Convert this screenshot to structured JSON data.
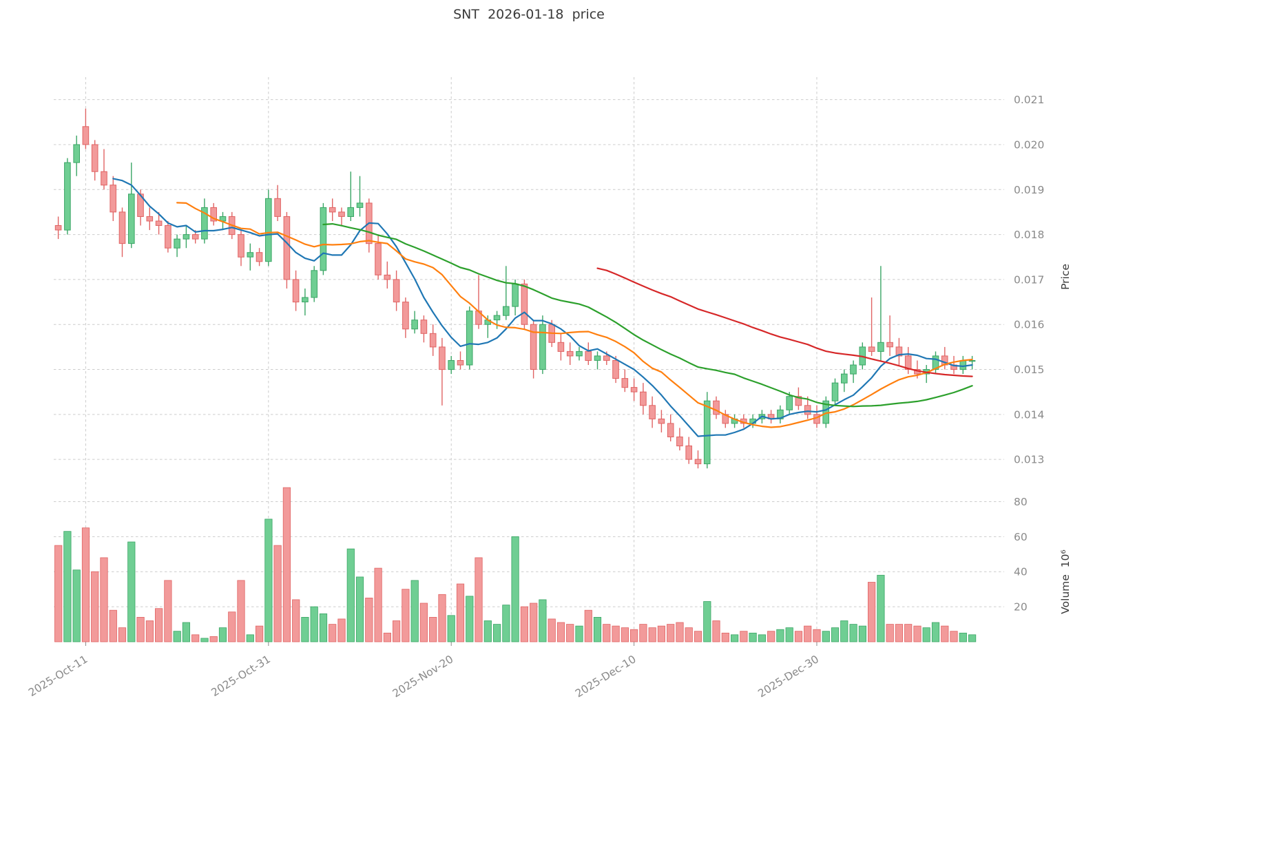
{
  "title": "SNT  2026-01-18  price",
  "axes": {
    "price_label": "Price",
    "volume_label": "Volume  10⁶"
  },
  "chart_data": {
    "type": "candlestick",
    "title": "SNT  2026-01-18  price",
    "ylabel": "Price",
    "ylabel_volume": "Volume  10⁶",
    "grid": true,
    "ylim": [
      0.01265,
      0.0215
    ],
    "volume_ylim": [
      0,
      90
    ],
    "price_ticks": [
      "0.013",
      "0.014",
      "0.015",
      "0.016",
      "0.017",
      "0.018",
      "0.019",
      "0.020",
      "0.021"
    ],
    "volume_ticks": [
      "20",
      "40",
      "60",
      "80"
    ],
    "x_ticks": [
      {
        "index": 3,
        "label": "2025-Oct-11"
      },
      {
        "index": 23,
        "label": "2025-Oct-31"
      },
      {
        "index": 43,
        "label": "2025-Nov-20"
      },
      {
        "index": 63,
        "label": "2025-Dec-10"
      },
      {
        "index": 83,
        "label": "2025-Dec-30"
      }
    ],
    "colors": {
      "up_fill": "#6fce93",
      "up_edge": "#3aa565",
      "down_fill": "#f29a9a",
      "down_edge": "#e06363",
      "grid": "#cccccc",
      "tick_text": "#8a8a8a",
      "ma_colors": [
        "#1f77b4",
        "#ff7f0e",
        "#2ca02c",
        "#d62728"
      ]
    },
    "mavs": [
      {
        "window": 7,
        "color": "#1f77b4"
      },
      {
        "window": 14,
        "color": "#ff7f0e"
      },
      {
        "window": 30,
        "color": "#2ca02c"
      },
      {
        "window": 60,
        "color": "#d62728"
      }
    ],
    "dates": [
      "2025-10-08",
      "2025-10-09",
      "2025-10-10",
      "2025-10-11",
      "2025-10-12",
      "2025-10-13",
      "2025-10-14",
      "2025-10-15",
      "2025-10-16",
      "2025-10-17",
      "2025-10-18",
      "2025-10-19",
      "2025-10-20",
      "2025-10-21",
      "2025-10-22",
      "2025-10-23",
      "2025-10-24",
      "2025-10-25",
      "2025-10-26",
      "2025-10-27",
      "2025-10-28",
      "2025-10-29",
      "2025-10-30",
      "2025-10-31",
      "2025-11-01",
      "2025-11-02",
      "2025-11-03",
      "2025-11-04",
      "2025-11-05",
      "2025-11-06",
      "2025-11-07",
      "2025-11-08",
      "2025-11-09",
      "2025-11-10",
      "2025-11-11",
      "2025-11-12",
      "2025-11-13",
      "2025-11-14",
      "2025-11-15",
      "2025-11-16",
      "2025-11-17",
      "2025-11-18",
      "2025-11-19",
      "2025-11-20",
      "2025-11-21",
      "2025-11-22",
      "2025-11-23",
      "2025-11-24",
      "2025-11-25",
      "2025-11-26",
      "2025-11-27",
      "2025-11-28",
      "2025-11-29",
      "2025-11-30",
      "2025-12-01",
      "2025-12-02",
      "2025-12-03",
      "2025-12-04",
      "2025-12-05",
      "2025-12-06",
      "2025-12-07",
      "2025-12-08",
      "2025-12-09",
      "2025-12-10",
      "2025-12-11",
      "2025-12-12",
      "2025-12-13",
      "2025-12-14",
      "2025-12-15",
      "2025-12-16",
      "2025-12-17",
      "2025-12-18",
      "2025-12-19",
      "2025-12-20",
      "2025-12-21",
      "2025-12-22",
      "2025-12-23",
      "2025-12-24",
      "2025-12-25",
      "2025-12-26",
      "2025-12-27",
      "2025-12-28",
      "2025-12-29",
      "2025-12-30",
      "2025-12-31",
      "2026-01-01",
      "2026-01-02",
      "2026-01-03",
      "2026-01-04",
      "2026-01-05",
      "2026-01-06",
      "2026-01-07",
      "2026-01-08",
      "2026-01-09",
      "2026-01-10",
      "2026-01-11",
      "2026-01-12",
      "2026-01-13",
      "2026-01-14",
      "2026-01-15",
      "2026-01-16"
    ],
    "open": [
      0.0182,
      0.0181,
      0.0196,
      0.0204,
      0.02,
      0.0194,
      0.0191,
      0.0185,
      0.0178,
      0.0189,
      0.0184,
      0.0183,
      0.0182,
      0.0177,
      0.0179,
      0.018,
      0.0179,
      0.0186,
      0.0183,
      0.0184,
      0.018,
      0.0175,
      0.0176,
      0.0174,
      0.0188,
      0.0184,
      0.017,
      0.0165,
      0.0166,
      0.0172,
      0.0186,
      0.0185,
      0.0184,
      0.0186,
      0.0187,
      0.0178,
      0.0171,
      0.017,
      0.0165,
      0.0159,
      0.0161,
      0.0158,
      0.0155,
      0.015,
      0.0152,
      0.0151,
      0.0163,
      0.016,
      0.0161,
      0.0162,
      0.0164,
      0.0169,
      0.016,
      0.015,
      0.016,
      0.0156,
      0.0154,
      0.0153,
      0.0154,
      0.0152,
      0.0153,
      0.0152,
      0.0148,
      0.0146,
      0.0145,
      0.0142,
      0.0139,
      0.0138,
      0.0135,
      0.0133,
      0.013,
      0.0129,
      0.0143,
      0.014,
      0.0138,
      0.0139,
      0.0138,
      0.0139,
      0.014,
      0.0139,
      0.0141,
      0.0144,
      0.0142,
      0.014,
      0.0138,
      0.0143,
      0.0147,
      0.0149,
      0.0151,
      0.0155,
      0.0154,
      0.0156,
      0.0155,
      0.0153,
      0.015,
      0.0149,
      0.015,
      0.0153,
      0.0151,
      0.015,
      0.0152
    ],
    "high": [
      0.0184,
      0.0197,
      0.0202,
      0.0208,
      0.0201,
      0.0199,
      0.0193,
      0.0186,
      0.0196,
      0.019,
      0.0186,
      0.0185,
      0.0183,
      0.018,
      0.0182,
      0.0181,
      0.0188,
      0.0187,
      0.0185,
      0.0185,
      0.0181,
      0.0178,
      0.0177,
      0.019,
      0.0191,
      0.0185,
      0.0172,
      0.0168,
      0.0173,
      0.0187,
      0.0188,
      0.0186,
      0.0194,
      0.0193,
      0.0188,
      0.018,
      0.0174,
      0.0172,
      0.0166,
      0.0163,
      0.0162,
      0.016,
      0.0157,
      0.0153,
      0.0154,
      0.0164,
      0.0171,
      0.0162,
      0.0163,
      0.0173,
      0.017,
      0.017,
      0.0161,
      0.0162,
      0.0161,
      0.0158,
      0.0156,
      0.0155,
      0.0156,
      0.0154,
      0.0154,
      0.0153,
      0.015,
      0.0148,
      0.0147,
      0.0144,
      0.0141,
      0.014,
      0.0137,
      0.0135,
      0.0132,
      0.0145,
      0.0144,
      0.0141,
      0.014,
      0.014,
      0.014,
      0.0141,
      0.0141,
      0.0142,
      0.0145,
      0.0146,
      0.0144,
      0.0142,
      0.0144,
      0.0148,
      0.015,
      0.0152,
      0.0156,
      0.0166,
      0.0173,
      0.0162,
      0.0157,
      0.0155,
      0.0152,
      0.0151,
      0.0154,
      0.0155,
      0.0153,
      0.0153,
      0.0153
    ],
    "low": [
      0.0179,
      0.018,
      0.0193,
      0.0199,
      0.0192,
      0.019,
      0.0183,
      0.0175,
      0.0177,
      0.0182,
      0.0181,
      0.018,
      0.0176,
      0.0175,
      0.0177,
      0.0178,
      0.0178,
      0.0182,
      0.0181,
      0.0179,
      0.0173,
      0.0172,
      0.0173,
      0.0173,
      0.0183,
      0.0168,
      0.0163,
      0.0162,
      0.0165,
      0.0171,
      0.0183,
      0.0182,
      0.0183,
      0.0184,
      0.0176,
      0.017,
      0.0168,
      0.0163,
      0.0157,
      0.0158,
      0.0156,
      0.0153,
      0.0142,
      0.0149,
      0.015,
      0.015,
      0.0159,
      0.0157,
      0.0159,
      0.0161,
      0.0162,
      0.0159,
      0.0148,
      0.0149,
      0.0155,
      0.0152,
      0.0151,
      0.0152,
      0.0151,
      0.015,
      0.0151,
      0.0147,
      0.0145,
      0.0143,
      0.014,
      0.0137,
      0.0136,
      0.0134,
      0.0132,
      0.0129,
      0.0128,
      0.0128,
      0.0139,
      0.0137,
      0.0137,
      0.0137,
      0.0137,
      0.0138,
      0.0138,
      0.0138,
      0.014,
      0.0141,
      0.0139,
      0.0137,
      0.0137,
      0.0142,
      0.0145,
      0.0147,
      0.015,
      0.0153,
      0.0152,
      0.0153,
      0.0151,
      0.0149,
      0.0148,
      0.0147,
      0.0149,
      0.015,
      0.0149,
      0.0149,
      0.015
    ],
    "close": [
      0.0181,
      0.0196,
      0.02,
      0.02,
      0.0194,
      0.0191,
      0.0185,
      0.0178,
      0.0189,
      0.0184,
      0.0183,
      0.0182,
      0.0177,
      0.0179,
      0.018,
      0.0179,
      0.0186,
      0.0183,
      0.0184,
      0.018,
      0.0175,
      0.0176,
      0.0174,
      0.0188,
      0.0184,
      0.017,
      0.0165,
      0.0166,
      0.0172,
      0.0186,
      0.0185,
      0.0184,
      0.0186,
      0.0187,
      0.0178,
      0.0171,
      0.017,
      0.0165,
      0.0159,
      0.0161,
      0.0158,
      0.0155,
      0.015,
      0.0152,
      0.0151,
      0.0163,
      0.016,
      0.0161,
      0.0162,
      0.0164,
      0.0169,
      0.016,
      0.015,
      0.016,
      0.0156,
      0.0154,
      0.0153,
      0.0154,
      0.0152,
      0.0153,
      0.0152,
      0.0148,
      0.0146,
      0.0145,
      0.0142,
      0.0139,
      0.0138,
      0.0135,
      0.0133,
      0.013,
      0.0129,
      0.0143,
      0.014,
      0.0138,
      0.0139,
      0.0138,
      0.0139,
      0.014,
      0.0139,
      0.0141,
      0.0144,
      0.0142,
      0.014,
      0.0138,
      0.0143,
      0.0147,
      0.0149,
      0.0151,
      0.0155,
      0.0154,
      0.0156,
      0.0155,
      0.0153,
      0.015,
      0.0149,
      0.015,
      0.0153,
      0.0151,
      0.015,
      0.0152,
      0.0152
    ],
    "volume": [
      55,
      63,
      41,
      65,
      40,
      48,
      18,
      8,
      57,
      14,
      12,
      19,
      35,
      6,
      11,
      4,
      2,
      3,
      8,
      17,
      35,
      4,
      9,
      70,
      55,
      88,
      24,
      14,
      20,
      16,
      10,
      13,
      53,
      37,
      25,
      42,
      5,
      12,
      30,
      35,
      22,
      14,
      27,
      15,
      33,
      26,
      48,
      12,
      10,
      21,
      60,
      20,
      22,
      24,
      13,
      11,
      10,
      9,
      18,
      14,
      10,
      9,
      8,
      7,
      10,
      8,
      9,
      10,
      11,
      8,
      6,
      23,
      12,
      5,
      4,
      6,
      5,
      4,
      6,
      7,
      8,
      6,
      9,
      7,
      6,
      8,
      12,
      10,
      9,
      34,
      38,
      10,
      10,
      10,
      9,
      8,
      11,
      9,
      6,
      5,
      4
    ]
  }
}
